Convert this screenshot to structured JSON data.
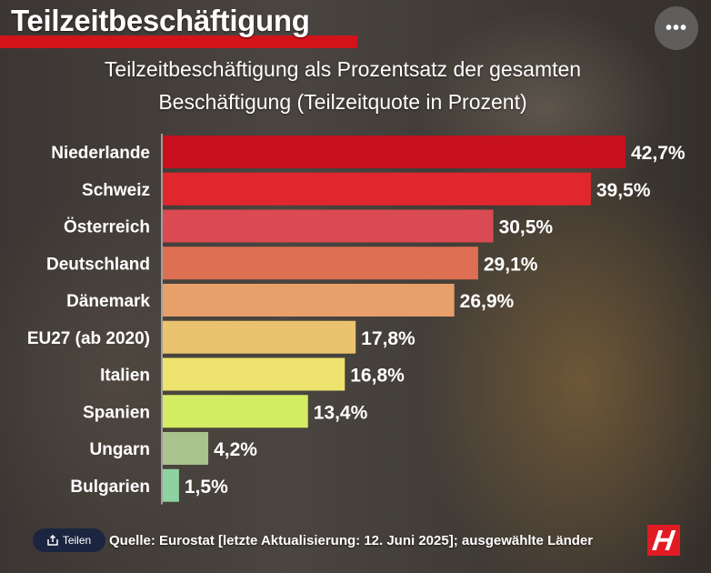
{
  "header": {
    "headline": "Teilzeitbeschäftigung",
    "more_label": "•••"
  },
  "chart_data": {
    "type": "bar",
    "orientation": "horizontal",
    "title": "Teilzeitbeschäftigung als Prozentsatz der gesamten Beschäftigung (Teilzeitquote in Prozent)",
    "title_lines": [
      "Teilzeitbeschäftigung als Prozentsatz der gesamten",
      "Beschäftigung (Teilzeitquote in Prozent)"
    ],
    "categories": [
      "Niederlande",
      "Schweiz",
      "Österreich",
      "Deutschland",
      "Dänemark",
      "EU27 (ab 2020)",
      "Italien",
      "Spanien",
      "Ungarn",
      "Bulgarien"
    ],
    "values": [
      42.7,
      39.5,
      30.5,
      29.1,
      26.9,
      17.8,
      16.8,
      13.4,
      4.2,
      1.5
    ],
    "value_labels": [
      "42,7%",
      "39,5%",
      "30,5%",
      "29,1%",
      "26,9%",
      "17,8%",
      "16,8%",
      "13,4%",
      "4,2%",
      "1,5%"
    ],
    "colors": [
      "#c8101e",
      "#e0272e",
      "#d94a52",
      "#dd6f52",
      "#e8a06a",
      "#ebc36e",
      "#eee36e",
      "#d4ec62",
      "#a9c28e",
      "#8ed2a2"
    ],
    "xlim": [
      0,
      42.7
    ],
    "xlabel": "",
    "ylabel": ""
  },
  "footer": {
    "share_label": "Teilen",
    "share_icon": "share-icon",
    "source": "Quelle: Eurostat [letzte Aktualisierung: 12. Juni 2025];  ausgewählte Länder",
    "logo_letter": "H",
    "logo_color": "#e11b22"
  }
}
